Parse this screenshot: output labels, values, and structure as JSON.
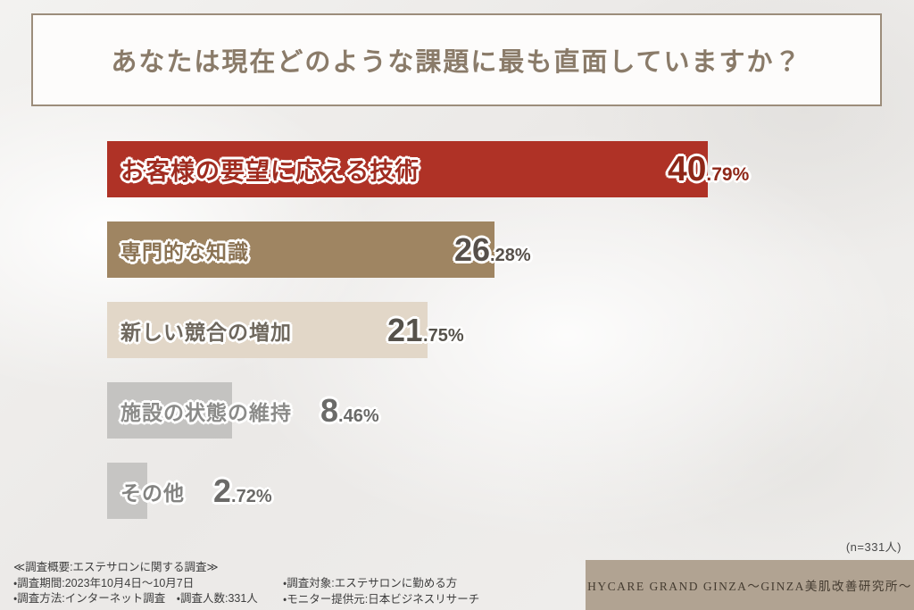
{
  "title": "あなたは現在どのような課題に最も直面していますか？",
  "chart_data": {
    "type": "bar",
    "orientation": "horizontal",
    "title": "あなたは現在どのような課題に最も直面していますか？",
    "categories": [
      "お客様の要望に応える技術",
      "専門的な知識",
      "新しい競合の増加",
      "施設の状態の維持",
      "その他"
    ],
    "values": [
      40.79,
      26.28,
      21.75,
      8.46,
      2.72
    ],
    "unit": "%",
    "xlim": [
      0,
      45
    ],
    "grid": false,
    "legend": "none",
    "sample_size": 331
  },
  "bars": [
    {
      "label": "お客様の要望に応える技術",
      "value": 40.79,
      "value_int": "40",
      "value_frac": ".79%",
      "bar_color": "#af3226",
      "label_color": "#a02c20",
      "value_color": "#8e2718"
    },
    {
      "label": "専門的な知識",
      "value": 26.28,
      "value_int": "26",
      "value_frac": ".28%",
      "bar_color": "#9f8562",
      "label_color": "#8a7252",
      "value_color": "#57504a"
    },
    {
      "label": "新しい競合の増加",
      "value": 21.75,
      "value_int": "21",
      "value_frac": ".75%",
      "bar_color": "#e2d7c8",
      "label_color": "#6f685e",
      "value_color": "#56524b"
    },
    {
      "label": "施設の状態の維持",
      "value": 8.46,
      "value_int": "8",
      "value_frac": ".46%",
      "bar_color": "#c4c3c1",
      "label_color": "#8b8b89",
      "value_color": "#6a6a68"
    },
    {
      "label": "その他",
      "value": 2.72,
      "value_int": "2",
      "value_frac": ".72%",
      "bar_color": "#c6c5c3",
      "label_color": "#838381",
      "value_color": "#6b6a68"
    }
  ],
  "footer": {
    "n_note": "(n=331人)",
    "survey_heading": "≪調査概要:エステサロンに関する調査≫",
    "survey_period": "・調査期間:2023年10月4日〜10月7日",
    "survey_method": "・調査方法:インターネット調査　・調査人数:331人",
    "survey_target": "・調査対象:エステサロンに勤める方",
    "survey_monitor": "・モニター提供元:日本ビジネスリサーチ",
    "brand": "HYCARE GRAND GINZA～GINZA美肌改善研究所～"
  },
  "colors": {
    "title_text": "#8a7b69",
    "title_border": "#9c8d7b",
    "brand_box": "#b1a392",
    "brand_text": "#453c31",
    "footer_text": "#3e3e3e"
  }
}
